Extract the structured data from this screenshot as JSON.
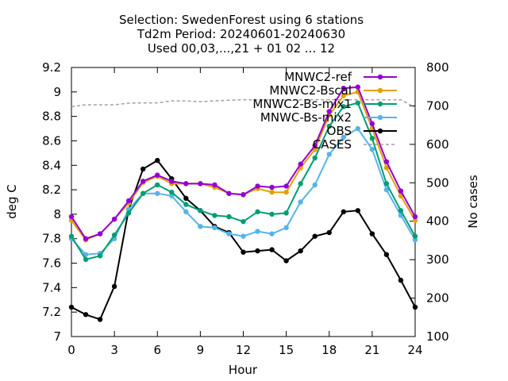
{
  "chart_data": {
    "type": "line",
    "title_lines": [
      "Selection: SwedenForest using     6 stations",
      "Td2m   Period: 20240601-20240630",
      "Used 00,03,...,21 + 01 02 ... 12"
    ],
    "xlabel": "Hour",
    "ylabel": "deg C",
    "y2label": "No cases",
    "xlim": [
      0,
      24
    ],
    "ylim": [
      7,
      9.2
    ],
    "y2lim": [
      100,
      800
    ],
    "x_ticks": [
      0,
      3,
      6,
      9,
      12,
      15,
      18,
      21,
      24
    ],
    "y_ticks": [
      "7",
      "7.2",
      "7.4",
      "7.6",
      "7.8",
      "8",
      "8.2",
      "8.4",
      "8.6",
      "8.8",
      "9",
      "9.2"
    ],
    "y2_ticks": [
      "100",
      "200",
      "300",
      "400",
      "500",
      "600",
      "700",
      "800"
    ],
    "grid": false,
    "legend_position": "top-right",
    "x": [
      0,
      1,
      2,
      3,
      4,
      5,
      6,
      7,
      8,
      9,
      10,
      11,
      12,
      13,
      14,
      15,
      16,
      17,
      18,
      19,
      20,
      21,
      22,
      23,
      24
    ],
    "series": [
      {
        "name": "MNWC2-ref",
        "color": "#9400d3",
        "marker": "dot",
        "values": [
          7.98,
          7.8,
          7.84,
          7.96,
          8.11,
          8.27,
          8.32,
          8.27,
          8.25,
          8.25,
          8.24,
          8.17,
          8.16,
          8.23,
          8.22,
          8.23,
          8.41,
          8.56,
          8.84,
          9.03,
          9.04,
          8.74,
          8.43,
          8.19,
          7.98
        ]
      },
      {
        "name": "MNWC2-Bscal",
        "color": "#e69f00",
        "marker": "dot",
        "values": [
          7.95,
          7.79,
          7.84,
          7.96,
          8.09,
          8.26,
          8.31,
          8.25,
          8.25,
          8.25,
          8.22,
          8.17,
          8.16,
          8.21,
          8.18,
          8.18,
          8.38,
          8.53,
          8.81,
          8.97,
          9.0,
          8.7,
          8.38,
          8.15,
          7.95
        ]
      },
      {
        "name": "MNWC2-Bs-mix1",
        "color": "#009e73",
        "marker": "dot",
        "values": [
          7.82,
          7.63,
          7.66,
          7.83,
          8.01,
          8.17,
          8.24,
          8.18,
          8.08,
          8.03,
          7.99,
          7.98,
          7.94,
          8.02,
          8.0,
          8.01,
          8.25,
          8.46,
          8.72,
          8.88,
          8.91,
          8.62,
          8.25,
          8.03,
          7.82
        ]
      },
      {
        "name": "MNWC-Bs-mix2",
        "color": "#56b4e9",
        "marker": "dot",
        "values": [
          7.8,
          7.67,
          7.68,
          7.8,
          8.04,
          8.17,
          8.17,
          8.15,
          8.02,
          7.9,
          7.89,
          7.84,
          7.82,
          7.86,
          7.84,
          7.89,
          8.1,
          8.24,
          8.49,
          8.63,
          8.7,
          8.53,
          8.2,
          7.99,
          7.79
        ]
      },
      {
        "name": "OBS",
        "color": "#000000",
        "marker": "dot",
        "values": [
          7.24,
          7.18,
          7.14,
          7.41,
          8.04,
          8.37,
          8.44,
          8.29,
          8.13,
          8.03,
          7.9,
          7.85,
          7.69,
          7.7,
          7.71,
          7.62,
          7.7,
          7.82,
          7.85,
          8.02,
          8.03,
          7.84,
          7.67,
          7.46,
          7.24
        ]
      },
      {
        "name": "CASES",
        "color": "#a0a0a0",
        "marker": "none",
        "dashed": true,
        "axis": "y2",
        "values": [
          698,
          703,
          703,
          703,
          707,
          708,
          708,
          713,
          713,
          711,
          713,
          715,
          716,
          716,
          716,
          716,
          716,
          716,
          716,
          716,
          716,
          716,
          716,
          716,
          696
        ]
      }
    ]
  }
}
